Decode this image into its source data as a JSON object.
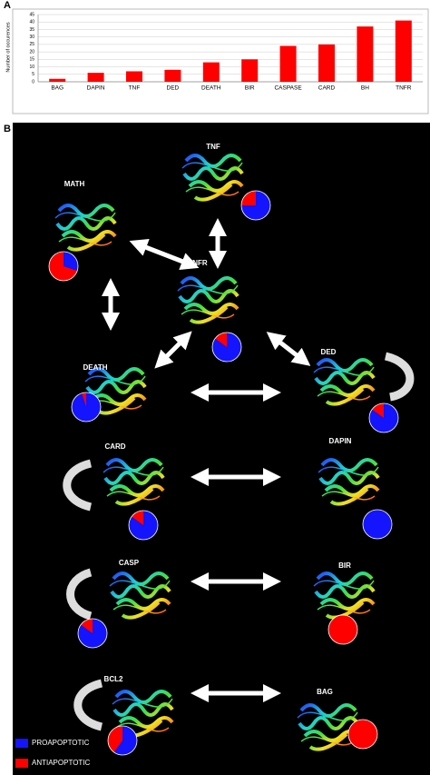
{
  "chart_data": {
    "type": "bar",
    "ylabel": "Number of occurences",
    "categories": [
      "BAG",
      "DAPIN",
      "TNF",
      "DED",
      "DEATH",
      "BIR",
      "CASPASE",
      "CARD",
      "BH",
      "TNFR"
    ],
    "values": [
      2,
      6,
      7,
      8,
      13,
      15,
      24,
      25,
      37,
      41
    ],
    "color": "#ff0000",
    "ylim": [
      0,
      45
    ],
    "yticks": [
      0,
      5,
      10,
      15,
      20,
      25,
      30,
      35,
      40,
      45
    ],
    "grid": true
  },
  "panel_labels": [
    "A",
    "B"
  ],
  "diagram": {
    "nodes": [
      {
        "label": "TNF",
        "proapoptotic": 75,
        "antiapoptotic": 25
      },
      {
        "label": "MATH",
        "proapoptotic": 30,
        "antiapoptotic": 70
      },
      {
        "label": "TNFR",
        "proapoptotic": 85,
        "antiapoptotic": 15
      },
      {
        "label": "DEATH",
        "proapoptotic": 95,
        "antiapoptotic": 5
      },
      {
        "label": "DED",
        "proapoptotic": 85,
        "antiapoptotic": 15
      },
      {
        "label": "CARD",
        "proapoptotic": 85,
        "antiapoptotic": 15
      },
      {
        "label": "DAPIN",
        "proapoptotic": 100,
        "antiapoptotic": 0
      },
      {
        "label": "CASP",
        "proapoptotic": 85,
        "antiapoptotic": 15
      },
      {
        "label": "BIR",
        "proapoptotic": 0,
        "antiapoptotic": 100
      },
      {
        "label": "BCL2",
        "proapoptotic": 60,
        "antiapoptotic": 40
      },
      {
        "label": "BAG",
        "proapoptotic": 0,
        "antiapoptotic": 100
      }
    ],
    "legend": [
      {
        "label": "PROAPOPTOTIC",
        "color": "#1414ff"
      },
      {
        "label": "ANTIAPOPTOTIC",
        "color": "#ff0000"
      }
    ]
  }
}
